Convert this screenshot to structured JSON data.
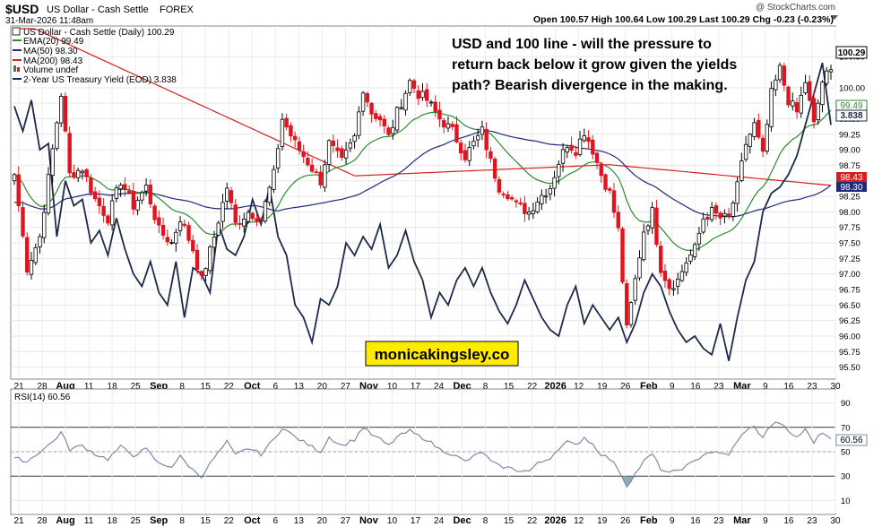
{
  "header": {
    "symbol": "$USD",
    "name": "US Dollar - Cash Settle",
    "exchange": "FOREX",
    "datetime": "31-Mar-2026 11:48am",
    "ohlc_text": "Open 100.57  High 100.64  Low 100.29  Last 100.29  Chg -0.23 (-0.23%)",
    "watermark": "@ StockCharts.com"
  },
  "legend": {
    "price": "US Dollar - Cash Settle (Daily) 100.29",
    "ema20": "EMA(20) 99.49",
    "ma50": "MA(50) 98.30",
    "ma200": "MA(200) 98.43",
    "volume": "Volume undef",
    "yield2y": "2-Year US Treasury Yield (EOD) 3.838"
  },
  "annotation": {
    "line1": "USD and 100 line - will the pressure to",
    "line2": "return back below it grow given the yields",
    "line3": "path? Bearish divergence in the making.",
    "site": "monicakingsley.co"
  },
  "badges": {
    "last": "100.29",
    "ema20": "99.49",
    "yield": "3.838",
    "ma200": "98.43",
    "ma50": "98.30",
    "rsi": "60.56"
  },
  "rsi_panel": {
    "label": "RSI(14) 60.56"
  },
  "colors": {
    "up": "#ffffff",
    "down": "#e0141e",
    "candle_outline": "#000000",
    "ema20": "#2e8b2e",
    "ma50": "#1f2a7a",
    "ma200": "#d42020",
    "yield": "#1d2a4a",
    "rsi": "#7a8ca6",
    "annotation_box": "#ffeb00"
  },
  "chart_data": {
    "type": "candlestick",
    "price_axis": {
      "ticks": [
        "100.50",
        "100.00",
        "99.75",
        "99.50",
        "99.25",
        "99.00",
        "98.75",
        "98.50",
        "98.25",
        "98.00",
        "97.75",
        "97.50",
        "97.25",
        "97.00",
        "96.75",
        "96.50",
        "96.25",
        "96.00",
        "95.75",
        "95.50"
      ],
      "ylim": [
        95.35,
        100.95
      ]
    },
    "x_axis": {
      "labels": [
        "21",
        "28",
        "Aug",
        "11",
        "18",
        "25",
        "Sep",
        "8",
        "15",
        "22",
        "Oct",
        "6",
        "13",
        "20",
        "27",
        "Nov",
        "10",
        "17",
        "24",
        "Dec",
        "8",
        "15",
        "22",
        "2026",
        "12",
        "19",
        "26",
        "Feb",
        "9",
        "16",
        "23",
        "Mar",
        "9",
        "16",
        "23",
        "30"
      ],
      "bold": [
        "Aug",
        "Sep",
        "Oct",
        "Nov",
        "Dec",
        "2026",
        "Feb",
        "Mar"
      ]
    },
    "rsi_axis": {
      "ticks": [
        "90",
        "70",
        "50",
        "30",
        "10"
      ],
      "overbought": 70,
      "oversold": 30,
      "ylim": [
        0,
        100
      ]
    },
    "close_anchors": [
      [
        0,
        98.6
      ],
      [
        3,
        97.1
      ],
      [
        6,
        97.6
      ],
      [
        9,
        99.0
      ],
      [
        11,
        99.9
      ],
      [
        13,
        98.6
      ],
      [
        16,
        98.7
      ],
      [
        19,
        98.2
      ],
      [
        22,
        97.9
      ],
      [
        25,
        98.5
      ],
      [
        28,
        98.1
      ],
      [
        31,
        98.4
      ],
      [
        34,
        97.7
      ],
      [
        37,
        97.5
      ],
      [
        39,
        97.9
      ],
      [
        42,
        97.4
      ],
      [
        44,
        96.9
      ],
      [
        47,
        97.6
      ],
      [
        50,
        98.4
      ],
      [
        52,
        97.8
      ],
      [
        55,
        98.0
      ],
      [
        58,
        97.9
      ],
      [
        61,
        98.6
      ],
      [
        63,
        99.5
      ],
      [
        66,
        99.1
      ],
      [
        69,
        98.8
      ],
      [
        72,
        98.5
      ],
      [
        74,
        99.1
      ],
      [
        77,
        98.8
      ],
      [
        80,
        99.2
      ],
      [
        82,
        100.0
      ],
      [
        84,
        99.6
      ],
      [
        86,
        99.5
      ],
      [
        88,
        99.2
      ],
      [
        90,
        99.6
      ],
      [
        93,
        100.1
      ],
      [
        95,
        99.9
      ],
      [
        97,
        99.8
      ],
      [
        100,
        99.5
      ],
      [
        103,
        99.3
      ],
      [
        106,
        98.9
      ],
      [
        108,
        99.1
      ],
      [
        110,
        99.3
      ],
      [
        112,
        98.8
      ],
      [
        114,
        98.4
      ],
      [
        116,
        98.3
      ],
      [
        118,
        98.1
      ],
      [
        121,
        98.0
      ],
      [
        123,
        98.2
      ],
      [
        126,
        98.4
      ],
      [
        128,
        98.8
      ],
      [
        130,
        99.1
      ],
      [
        132,
        99.0
      ],
      [
        134,
        99.3
      ],
      [
        136,
        99.0
      ],
      [
        138,
        98.6
      ],
      [
        140,
        98.3
      ],
      [
        142,
        97.7
      ],
      [
        144,
        96.1
      ],
      [
        146,
        96.9
      ],
      [
        148,
        97.7
      ],
      [
        150,
        98.0
      ],
      [
        152,
        97.1
      ],
      [
        154,
        96.8
      ],
      [
        156,
        96.9
      ],
      [
        158,
        97.2
      ],
      [
        160,
        97.4
      ],
      [
        162,
        97.9
      ],
      [
        164,
        98.0
      ],
      [
        166,
        97.9
      ],
      [
        168,
        97.9
      ],
      [
        170,
        98.4
      ],
      [
        172,
        99.1
      ],
      [
        174,
        99.4
      ],
      [
        176,
        98.9
      ],
      [
        178,
        99.9
      ],
      [
        180,
        100.3
      ],
      [
        182,
        99.8
      ],
      [
        184,
        99.6
      ],
      [
        186,
        100.1
      ],
      [
        188,
        99.4
      ],
      [
        190,
        100.1
      ],
      [
        192,
        100.3
      ]
    ],
    "yield_anchors": [
      [
        0,
        99.7
      ],
      [
        2,
        99.3
      ],
      [
        4,
        99.8
      ],
      [
        6,
        99.0
      ],
      [
        8,
        99.1
      ],
      [
        10,
        97.6
      ],
      [
        12,
        98.5
      ],
      [
        14,
        98.1
      ],
      [
        16,
        98.2
      ],
      [
        18,
        97.5
      ],
      [
        20,
        97.7
      ],
      [
        22,
        97.3
      ],
      [
        24,
        97.9
      ],
      [
        26,
        97.4
      ],
      [
        28,
        97.0
      ],
      [
        30,
        96.8
      ],
      [
        32,
        97.2
      ],
      [
        34,
        96.7
      ],
      [
        36,
        96.5
      ],
      [
        38,
        97.2
      ],
      [
        40,
        96.3
      ],
      [
        42,
        97.1
      ],
      [
        44,
        97.0
      ],
      [
        46,
        96.7
      ],
      [
        48,
        97.8
      ],
      [
        50,
        97.4
      ],
      [
        52,
        97.3
      ],
      [
        54,
        97.6
      ],
      [
        56,
        98.2
      ],
      [
        58,
        97.8
      ],
      [
        60,
        98.4
      ],
      [
        62,
        97.6
      ],
      [
        64,
        97.3
      ],
      [
        66,
        96.5
      ],
      [
        68,
        96.3
      ],
      [
        70,
        95.9
      ],
      [
        72,
        96.6
      ],
      [
        74,
        96.5
      ],
      [
        76,
        96.8
      ],
      [
        78,
        97.5
      ],
      [
        80,
        97.3
      ],
      [
        82,
        97.6
      ],
      [
        84,
        97.4
      ],
      [
        86,
        97.8
      ],
      [
        88,
        97.1
      ],
      [
        90,
        97.3
      ],
      [
        92,
        97.7
      ],
      [
        94,
        97.2
      ],
      [
        96,
        96.9
      ],
      [
        98,
        96.3
      ],
      [
        100,
        96.7
      ],
      [
        102,
        96.5
      ],
      [
        104,
        96.9
      ],
      [
        106,
        97.1
      ],
      [
        108,
        96.8
      ],
      [
        110,
        97.1
      ],
      [
        112,
        96.7
      ],
      [
        114,
        96.4
      ],
      [
        116,
        96.2
      ],
      [
        118,
        96.5
      ],
      [
        120,
        96.9
      ],
      [
        122,
        96.6
      ],
      [
        124,
        96.3
      ],
      [
        126,
        96.1
      ],
      [
        128,
        96.0
      ],
      [
        130,
        96.5
      ],
      [
        132,
        96.8
      ],
      [
        134,
        96.2
      ],
      [
        136,
        96.5
      ],
      [
        138,
        96.3
      ],
      [
        140,
        96.1
      ],
      [
        142,
        96.3
      ],
      [
        144,
        95.9
      ],
      [
        146,
        96.2
      ],
      [
        148,
        96.7
      ],
      [
        150,
        97.0
      ],
      [
        152,
        96.8
      ],
      [
        154,
        96.4
      ],
      [
        156,
        96.1
      ],
      [
        158,
        95.9
      ],
      [
        160,
        96.0
      ],
      [
        162,
        95.8
      ],
      [
        164,
        95.7
      ],
      [
        166,
        96.2
      ],
      [
        168,
        95.6
      ],
      [
        170,
        96.3
      ],
      [
        172,
        96.9
      ],
      [
        174,
        97.2
      ],
      [
        176,
        98.0
      ],
      [
        178,
        98.3
      ],
      [
        180,
        98.4
      ],
      [
        182,
        98.6
      ],
      [
        184,
        98.9
      ],
      [
        186,
        99.4
      ],
      [
        188,
        99.9
      ],
      [
        190,
        100.4
      ],
      [
        192,
        99.4
      ]
    ],
    "rsi_anchors": [
      [
        0,
        45
      ],
      [
        3,
        42
      ],
      [
        6,
        50
      ],
      [
        9,
        58
      ],
      [
        11,
        66
      ],
      [
        13,
        52
      ],
      [
        16,
        55
      ],
      [
        19,
        48
      ],
      [
        22,
        44
      ],
      [
        25,
        54
      ],
      [
        28,
        47
      ],
      [
        31,
        52
      ],
      [
        34,
        40
      ],
      [
        37,
        38
      ],
      [
        39,
        46
      ],
      [
        42,
        35
      ],
      [
        44,
        30
      ],
      [
        47,
        45
      ],
      [
        50,
        58
      ],
      [
        52,
        47
      ],
      [
        55,
        53
      ],
      [
        58,
        48
      ],
      [
        61,
        60
      ],
      [
        63,
        70
      ],
      [
        66,
        62
      ],
      [
        69,
        56
      ],
      [
        72,
        50
      ],
      [
        74,
        62
      ],
      [
        77,
        55
      ],
      [
        80,
        60
      ],
      [
        82,
        70
      ],
      [
        84,
        64
      ],
      [
        86,
        60
      ],
      [
        88,
        55
      ],
      [
        90,
        62
      ],
      [
        93,
        67
      ],
      [
        95,
        63
      ],
      [
        97,
        60
      ],
      [
        100,
        52
      ],
      [
        103,
        48
      ],
      [
        106,
        42
      ],
      [
        108,
        46
      ],
      [
        110,
        50
      ],
      [
        112,
        42
      ],
      [
        114,
        38
      ],
      [
        116,
        37
      ],
      [
        118,
        35
      ],
      [
        121,
        34
      ],
      [
        123,
        40
      ],
      [
        126,
        45
      ],
      [
        128,
        53
      ],
      [
        130,
        58
      ],
      [
        132,
        55
      ],
      [
        134,
        62
      ],
      [
        136,
        56
      ],
      [
        138,
        48
      ],
      [
        140,
        44
      ],
      [
        142,
        36
      ],
      [
        144,
        22
      ],
      [
        146,
        32
      ],
      [
        148,
        42
      ],
      [
        150,
        48
      ],
      [
        152,
        36
      ],
      [
        154,
        32
      ],
      [
        156,
        35
      ],
      [
        158,
        38
      ],
      [
        160,
        42
      ],
      [
        162,
        48
      ],
      [
        164,
        50
      ],
      [
        166,
        48
      ],
      [
        168,
        48
      ],
      [
        170,
        58
      ],
      [
        172,
        68
      ],
      [
        174,
        70
      ],
      [
        176,
        62
      ],
      [
        178,
        72
      ],
      [
        180,
        74
      ],
      [
        182,
        66
      ],
      [
        184,
        62
      ],
      [
        186,
        68
      ],
      [
        188,
        58
      ],
      [
        190,
        66
      ],
      [
        192,
        60.56
      ]
    ]
  }
}
